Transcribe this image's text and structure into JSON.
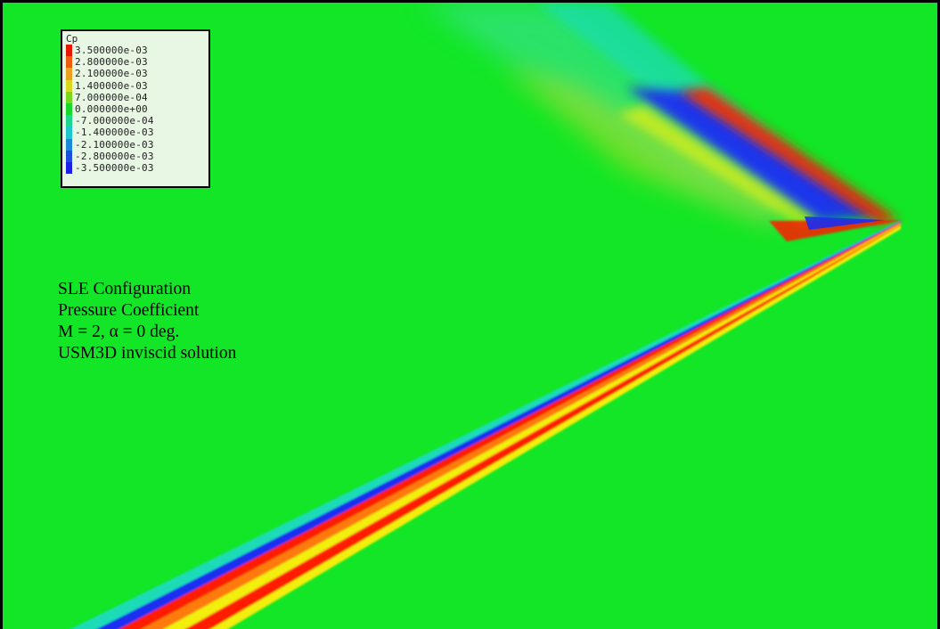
{
  "figure": {
    "background_color": "#12e626",
    "annotation_lines": [
      "SLE Configuration",
      "Pressure Coefficient",
      "M = 2, α = 0 deg.",
      "USM3D inviscid solution"
    ]
  },
  "legend": {
    "title": "Cp",
    "entries": [
      {
        "label": "3.500000e-03",
        "color": "#e81800"
      },
      {
        "label": "2.800000e-03",
        "color": "#f25a10"
      },
      {
        "label": "2.100000e-03",
        "color": "#f0a020"
      },
      {
        "label": "1.400000e-03",
        "color": "#d8d81c"
      },
      {
        "label": "7.000000e-04",
        "color": "#7ad81c"
      },
      {
        "label": "0.000000e+00",
        "color": "#18d82a"
      },
      {
        "label": "-7.000000e-04",
        "color": "#1cd88c"
      },
      {
        "label": "-1.400000e-03",
        "color": "#1cc8cc"
      },
      {
        "label": "-2.100000e-03",
        "color": "#1c8ad8"
      },
      {
        "label": "-2.800000e-03",
        "color": "#1c4ee0"
      },
      {
        "label": "-3.500000e-03",
        "color": "#1c20e8"
      }
    ]
  },
  "field_colors": {
    "red": "#ff1e00",
    "orange": "#ff7a10",
    "yellow": "#f2ee10",
    "cyan": "#1adcb8",
    "blue": "#1a2ef0",
    "light_cyan": "#40e0a0"
  }
}
